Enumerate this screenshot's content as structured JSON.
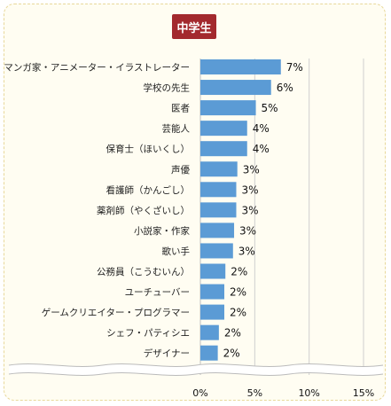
{
  "badge": {
    "label": "中学生"
  },
  "colors": {
    "bar": "#5b9bd5",
    "badge": "#a3292e",
    "grid": "#cfcfcf"
  },
  "chart_data": {
    "type": "bar",
    "orientation": "horizontal",
    "categories": [
      "マンガ家・アニメーター・イラストレーター",
      "学校の先生",
      "医者",
      "芸能人",
      "保育士（ほいくし）",
      "声優",
      "看護師（かんごし）",
      "薬剤師（やくざいし）",
      "小説家・作家",
      "歌い手",
      "公務員（こうむいん）",
      "ユーチューバー",
      "ゲームクリエイター・プログラマー",
      "シェフ・パティシエ",
      "デザイナー"
    ],
    "values": [
      7.4,
      6.5,
      5.1,
      4.3,
      4.3,
      3.4,
      3.3,
      3.3,
      3.1,
      3.0,
      2.3,
      2.2,
      2.2,
      1.7,
      1.6
    ],
    "value_labels": [
      "7%",
      "6%",
      "5%",
      "4%",
      "4%",
      "3%",
      "3%",
      "3%",
      "3%",
      "3%",
      "2%",
      "2%",
      "2%",
      "2%",
      "2%"
    ],
    "xlim": [
      0,
      15
    ],
    "xticks": [
      0,
      5,
      10,
      15
    ],
    "xtick_labels": [
      "0%",
      "5%",
      "10%",
      "15%"
    ],
    "grid": true
  }
}
